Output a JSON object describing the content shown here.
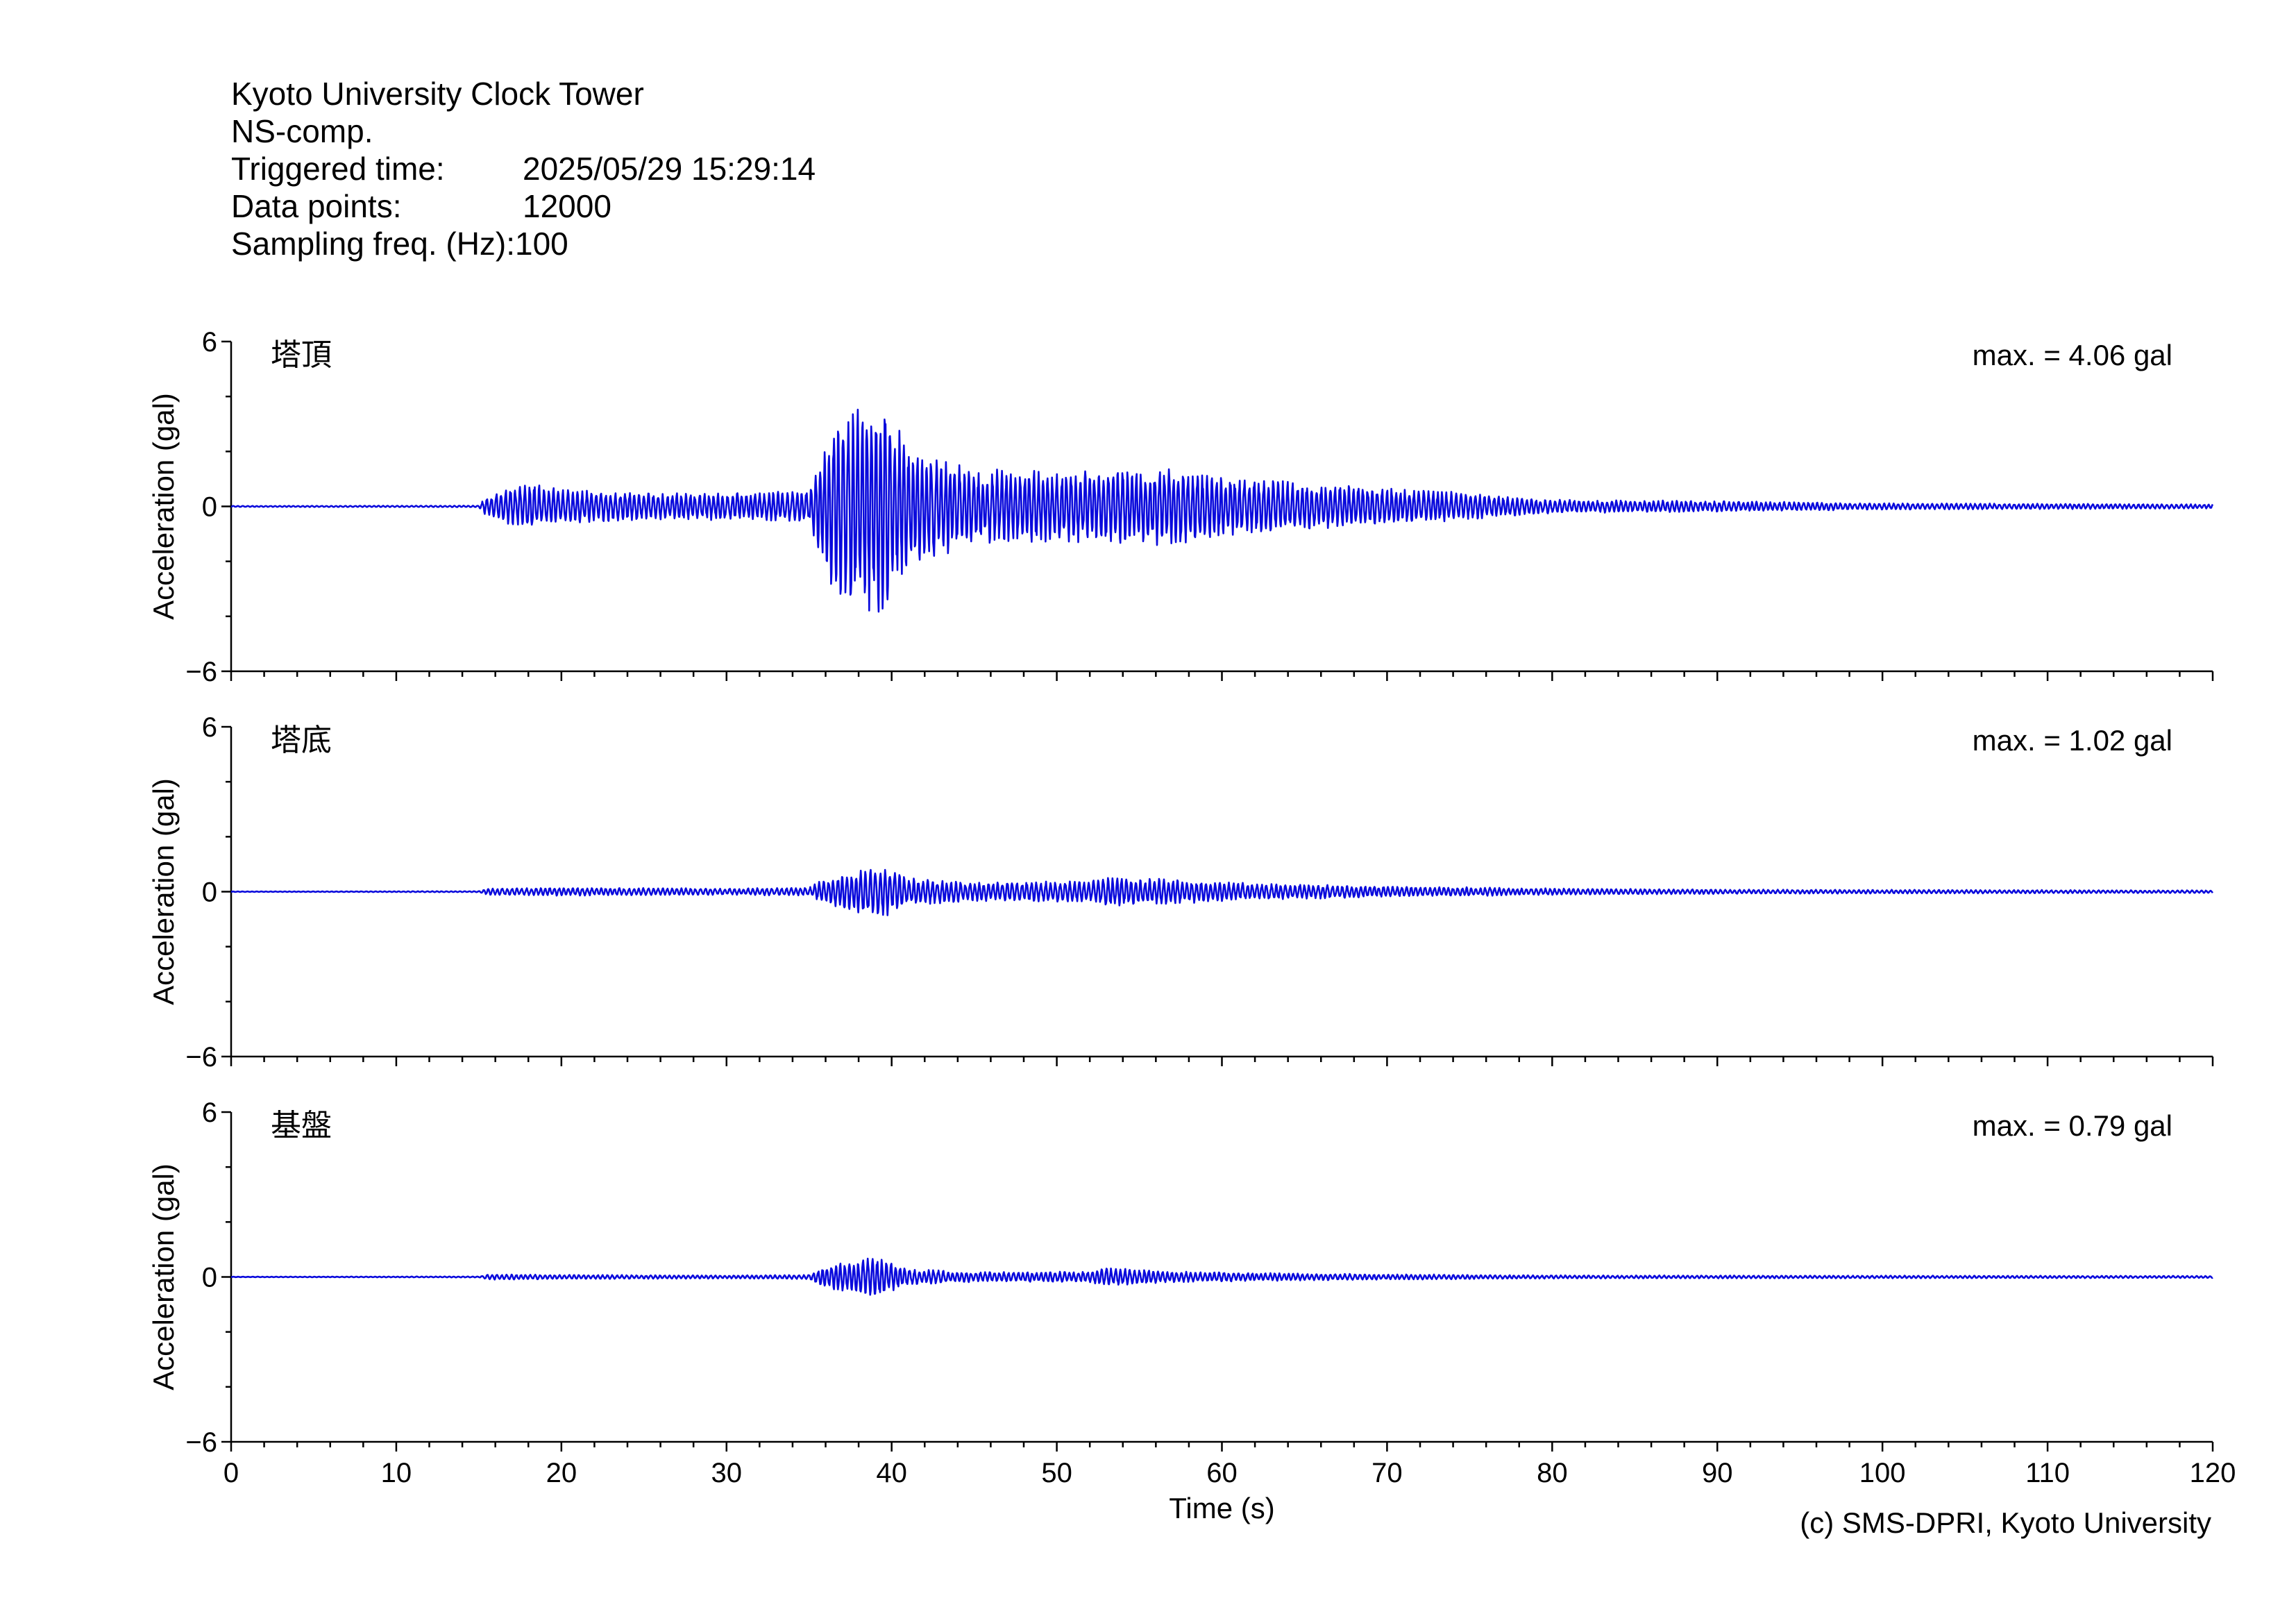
{
  "header": {
    "station": "Kyoto University Clock Tower",
    "component": "NS-comp.",
    "triggered_label": "Triggered time:",
    "triggered_value": "2025/05/29 15:29:14",
    "points_label": "Data points:",
    "points_value": "12000",
    "freq_label": "Sampling freq. (Hz):",
    "freq_value": "100"
  },
  "copyright": "(c) SMS-DPRI, Kyoto University",
  "colors": {
    "trace": "#0a0adc",
    "axis": "#000000"
  },
  "chart_data": {
    "type": "line",
    "xlabel": "Time (s)",
    "ylabel": "Acceleration (gal)",
    "xlim": [
      0,
      120
    ],
    "ylim": [
      -6,
      6
    ],
    "xticks": [
      "0",
      "10",
      "20",
      "30",
      "40",
      "50",
      "60",
      "70",
      "80",
      "90",
      "100",
      "110",
      "120"
    ],
    "yticks": [
      "6",
      "0",
      "−6"
    ],
    "grid": false,
    "panels": [
      {
        "name": "塔頂",
        "max_label": "max. = 4.06 gal",
        "envelope": [
          [
            0,
            0.02
          ],
          [
            15,
            0.03
          ],
          [
            15.5,
            0.4
          ],
          [
            18,
            0.9
          ],
          [
            20,
            0.6
          ],
          [
            26,
            0.5
          ],
          [
            30,
            0.5
          ],
          [
            35,
            0.6
          ],
          [
            36,
            2.6
          ],
          [
            37.5,
            3.8
          ],
          [
            39.5,
            4.06
          ],
          [
            41,
            2.3
          ],
          [
            45,
            1.4
          ],
          [
            52,
            1.3
          ],
          [
            57,
            1.5
          ],
          [
            62,
            1.0
          ],
          [
            70,
            0.7
          ],
          [
            75,
            0.5
          ],
          [
            80,
            0.25
          ],
          [
            90,
            0.2
          ],
          [
            100,
            0.12
          ],
          [
            120,
            0.08
          ]
        ]
      },
      {
        "name": "塔底",
        "max_label": "max. = 1.02 gal",
        "envelope": [
          [
            0,
            0.01
          ],
          [
            15,
            0.02
          ],
          [
            15.5,
            0.12
          ],
          [
            20,
            0.15
          ],
          [
            30,
            0.12
          ],
          [
            35,
            0.15
          ],
          [
            36,
            0.5
          ],
          [
            37.5,
            0.7
          ],
          [
            39.5,
            1.02
          ],
          [
            41,
            0.5
          ],
          [
            45,
            0.35
          ],
          [
            52,
            0.4
          ],
          [
            53,
            0.55
          ],
          [
            57,
            0.45
          ],
          [
            62,
            0.3
          ],
          [
            70,
            0.2
          ],
          [
            80,
            0.12
          ],
          [
            90,
            0.08
          ],
          [
            120,
            0.05
          ]
        ]
      },
      {
        "name": "基盤",
        "max_label": "max. = 0.79 gal",
        "envelope": [
          [
            0,
            0.01
          ],
          [
            15,
            0.02
          ],
          [
            15.5,
            0.1
          ],
          [
            20,
            0.08
          ],
          [
            30,
            0.06
          ],
          [
            35,
            0.08
          ],
          [
            36,
            0.45
          ],
          [
            37.5,
            0.6
          ],
          [
            39,
            0.79
          ],
          [
            41,
            0.3
          ],
          [
            45,
            0.18
          ],
          [
            52,
            0.2
          ],
          [
            53,
            0.35
          ],
          [
            57,
            0.2
          ],
          [
            62,
            0.15
          ],
          [
            70,
            0.1
          ],
          [
            80,
            0.06
          ],
          [
            120,
            0.04
          ]
        ]
      }
    ]
  }
}
